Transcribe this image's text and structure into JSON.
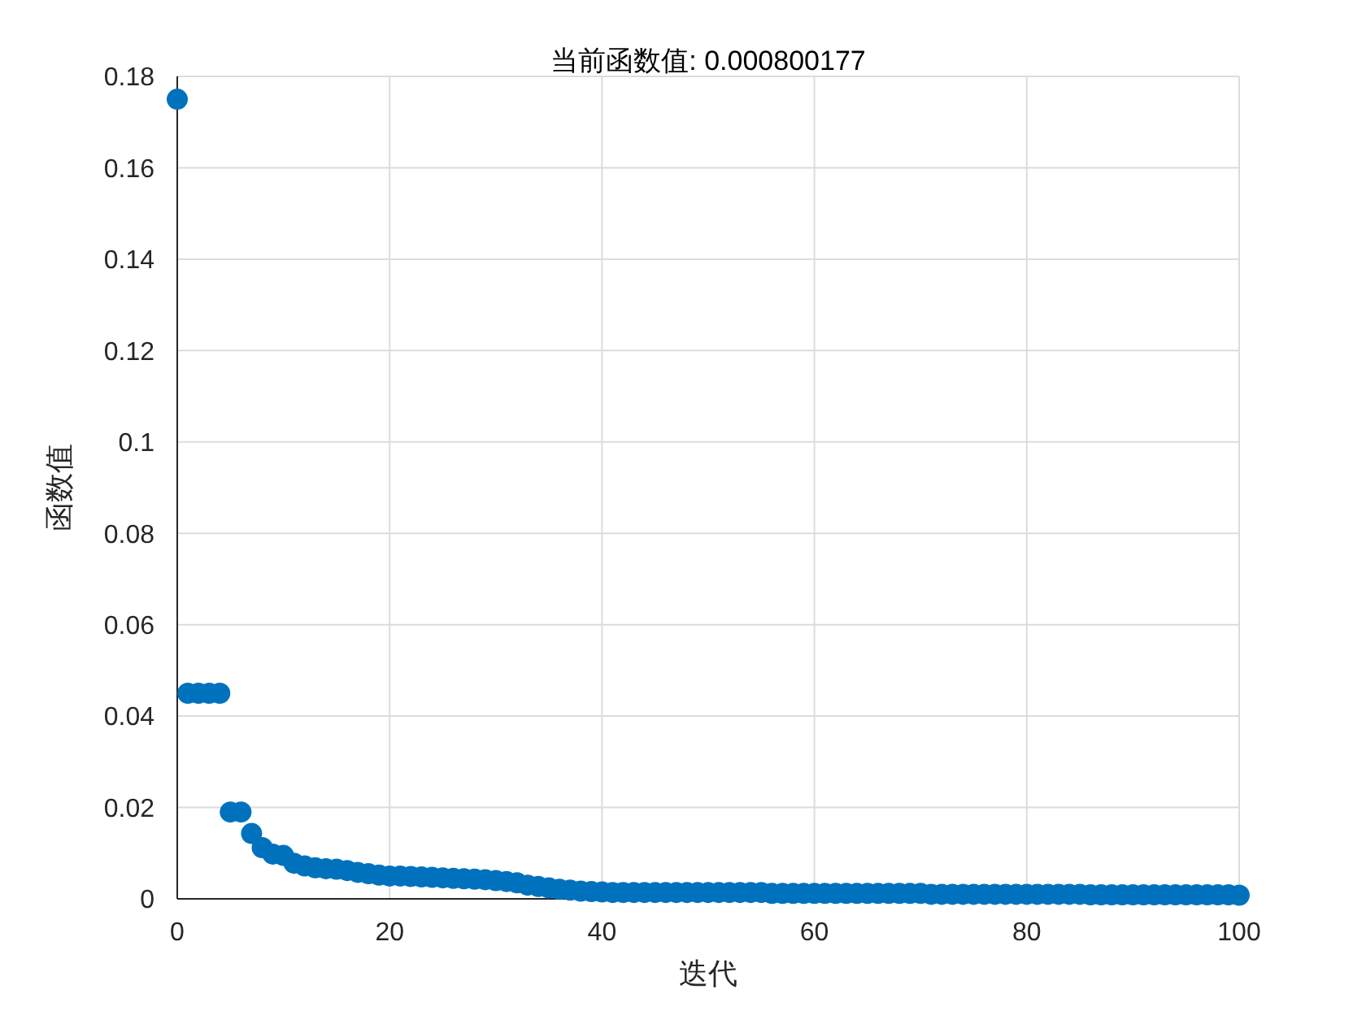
{
  "chart_data": {
    "type": "scatter",
    "title": "当前函数值: 0.000800177",
    "xlabel": "迭代",
    "ylabel": "函数值",
    "x": [
      0,
      1,
      2,
      3,
      4,
      5,
      6,
      7,
      8,
      9,
      10,
      11,
      12,
      13,
      14,
      15,
      16,
      17,
      18,
      19,
      20,
      21,
      22,
      23,
      24,
      25,
      26,
      27,
      28,
      29,
      30,
      31,
      32,
      33,
      34,
      35,
      36,
      37,
      38,
      39,
      40,
      41,
      42,
      43,
      44,
      45,
      46,
      47,
      48,
      49,
      50,
      51,
      52,
      53,
      54,
      55,
      56,
      57,
      58,
      59,
      60,
      61,
      62,
      63,
      64,
      65,
      66,
      67,
      68,
      69,
      70,
      71,
      72,
      73,
      74,
      75,
      76,
      77,
      78,
      79,
      80,
      81,
      82,
      83,
      84,
      85,
      86,
      87,
      88,
      89,
      90,
      91,
      92,
      93,
      94,
      95,
      96,
      97,
      98,
      99,
      100
    ],
    "series": [
      {
        "color": "#0072bd",
        "values": [
          0.175,
          0.045,
          0.045,
          0.045,
          0.045,
          0.019,
          0.019,
          0.0143,
          0.0112,
          0.0098,
          0.0095,
          0.0078,
          0.0072,
          0.0068,
          0.0066,
          0.0065,
          0.0062,
          0.0058,
          0.0055,
          0.0052,
          0.005,
          0.005,
          0.0049,
          0.0048,
          0.0047,
          0.0046,
          0.0045,
          0.0044,
          0.0043,
          0.0042,
          0.004,
          0.0038,
          0.0035,
          0.003,
          0.0027,
          0.0024,
          0.0021,
          0.0019,
          0.0017,
          0.0016,
          0.0015,
          0.0014,
          0.0014,
          0.0014,
          0.0014,
          0.0014,
          0.0014,
          0.0014,
          0.0014,
          0.0014,
          0.0014,
          0.0014,
          0.0014,
          0.0014,
          0.0014,
          0.0014,
          0.0012,
          0.0012,
          0.0012,
          0.0012,
          0.0012,
          0.0012,
          0.0012,
          0.0012,
          0.0012,
          0.0012,
          0.0012,
          0.0012,
          0.0012,
          0.0012,
          0.0012,
          0.001,
          0.001,
          0.001,
          0.001,
          0.001,
          0.001,
          0.001,
          0.001,
          0.001,
          0.001,
          0.001,
          0.001,
          0.001,
          0.001,
          0.001,
          0.0009,
          0.0009,
          0.0009,
          0.0009,
          0.0009,
          0.0009,
          0.0009,
          0.0009,
          0.0009,
          0.0009,
          0.0009,
          0.0009,
          0.0009,
          0.0009,
          0.0008
        ]
      }
    ],
    "xlim": [
      0,
      100
    ],
    "xticks": [
      0,
      20,
      40,
      60,
      80,
      100
    ],
    "ylim": [
      0,
      0.18
    ],
    "yticks": [
      0,
      0.02,
      0.04,
      0.06,
      0.08,
      0.1,
      0.12,
      0.14,
      0.16,
      0.18
    ],
    "grid": true,
    "marker": "circle"
  }
}
